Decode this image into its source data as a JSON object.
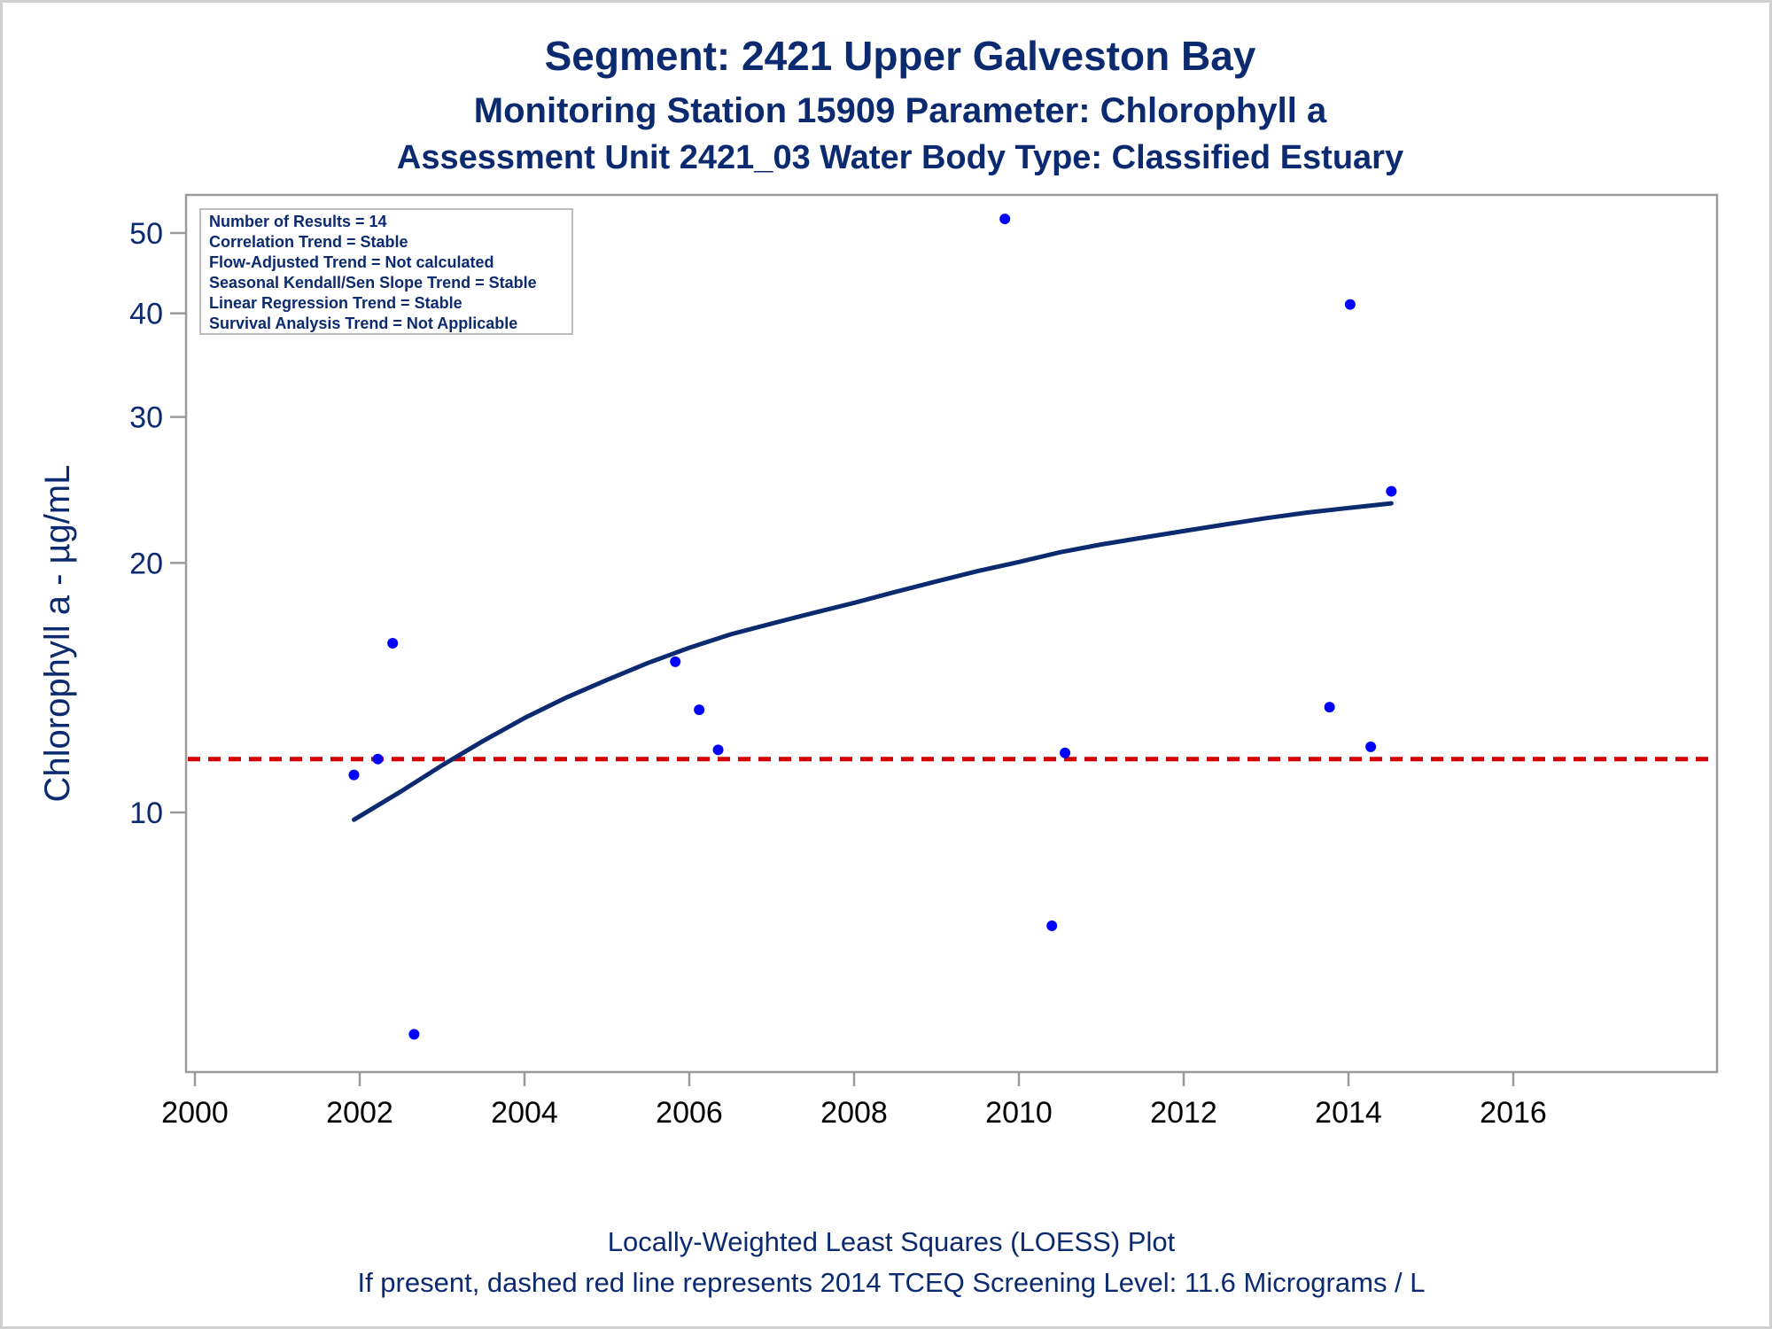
{
  "chart_data": {
    "type": "scatter",
    "title": "Segment: 2421  Upper Galveston Bay",
    "subtitle": "Monitoring Station 15909 Parameter: Chlorophyll a",
    "subtitle2": "Assessment Unit 2421_03   Water Body Type: Classified Estuary",
    "xlabel": "",
    "ylabel": "Chlorophyll a -  µg/mL",
    "xlim": [
      2000,
      2016
    ],
    "ylim": [
      5,
      55
    ],
    "yscale": "log",
    "xticks": [
      2000,
      2002,
      2004,
      2006,
      2008,
      2010,
      2012,
      2014,
      2016
    ],
    "yticks": [
      10,
      20,
      30,
      40,
      50
    ],
    "grid": false,
    "points": [
      {
        "x": 2001.93,
        "y": 11.1
      },
      {
        "x": 2002.22,
        "y": 11.6
      },
      {
        "x": 2002.4,
        "y": 16.0
      },
      {
        "x": 2002.66,
        "y": 5.4
      },
      {
        "x": 2005.83,
        "y": 15.2
      },
      {
        "x": 2006.12,
        "y": 13.3
      },
      {
        "x": 2006.35,
        "y": 11.9
      },
      {
        "x": 2009.83,
        "y": 52.0
      },
      {
        "x": 2010.4,
        "y": 7.3
      },
      {
        "x": 2010.56,
        "y": 11.8
      },
      {
        "x": 2013.77,
        "y": 13.4
      },
      {
        "x": 2014.02,
        "y": 41.0
      },
      {
        "x": 2014.27,
        "y": 12.0
      },
      {
        "x": 2014.52,
        "y": 24.4
      }
    ],
    "loess": [
      {
        "x": 2001.93,
        "y": 9.8
      },
      {
        "x": 2002.5,
        "y": 10.6
      },
      {
        "x": 2003.0,
        "y": 11.4
      },
      {
        "x": 2003.5,
        "y": 12.2
      },
      {
        "x": 2004.0,
        "y": 13.0
      },
      {
        "x": 2004.5,
        "y": 13.75
      },
      {
        "x": 2005.0,
        "y": 14.45
      },
      {
        "x": 2005.5,
        "y": 15.15
      },
      {
        "x": 2006.0,
        "y": 15.8
      },
      {
        "x": 2006.5,
        "y": 16.4
      },
      {
        "x": 2007.0,
        "y": 16.9
      },
      {
        "x": 2007.5,
        "y": 17.4
      },
      {
        "x": 2008.0,
        "y": 17.9
      },
      {
        "x": 2008.5,
        "y": 18.45
      },
      {
        "x": 2009.0,
        "y": 19.0
      },
      {
        "x": 2009.5,
        "y": 19.55
      },
      {
        "x": 2010.0,
        "y": 20.05
      },
      {
        "x": 2010.5,
        "y": 20.6
      },
      {
        "x": 2011.0,
        "y": 21.05
      },
      {
        "x": 2011.5,
        "y": 21.45
      },
      {
        "x": 2012.0,
        "y": 21.85
      },
      {
        "x": 2012.5,
        "y": 22.25
      },
      {
        "x": 2013.0,
        "y": 22.65
      },
      {
        "x": 2013.5,
        "y": 23.0
      },
      {
        "x": 2014.0,
        "y": 23.3
      },
      {
        "x": 2014.52,
        "y": 23.6
      }
    ],
    "screening_level": 11.6,
    "legend_placement": "top-left",
    "colors": {
      "points": "#0000ff",
      "loess": "#0b2a6f",
      "screening_line": "#d40000",
      "text": "#0b2a6f"
    }
  },
  "stats_box": [
    "Number of Results = 14",
    "Correlation Trend = Stable",
    "Flow-Adjusted Trend = Not calculated",
    "Seasonal Kendall/Sen Slope Trend = Stable",
    "Linear Regression Trend = Stable",
    "Survival Analysis Trend = Not Applicable"
  ],
  "footnotes": {
    "line1": "Locally-Weighted Least Squares (LOESS) Plot",
    "line2": "If present, dashed red line represents 2014 TCEQ Screening Level: 11.6 Micrograms / L"
  }
}
